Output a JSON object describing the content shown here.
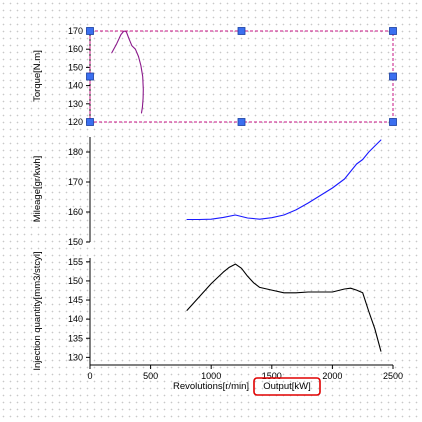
{
  "colors": {
    "background": "#ffffff",
    "axis": "#000000",
    "selection_box": "#c71585",
    "handle_fill": "#3b6ff0",
    "handle_stroke": "#1a3fa0",
    "highlight_box": "#e00000"
  },
  "chart_data": [
    {
      "type": "line",
      "panel": "torque",
      "ylabel": "Torque[N.m]",
      "ylim": [
        120,
        170
      ],
      "yticks": [
        120,
        130,
        140,
        150,
        160,
        170
      ],
      "selected": true,
      "series": [
        {
          "color": "#8b1a8b",
          "x": [
            180,
            220,
            255,
            280,
            300,
            320,
            345,
            375,
            400,
            420,
            435,
            440,
            438,
            432,
            425
          ],
          "y": [
            158,
            163,
            168,
            170,
            169.5,
            166,
            162,
            160,
            156,
            151,
            145,
            138,
            133,
            128,
            125
          ]
        }
      ]
    },
    {
      "type": "line",
      "panel": "mileage",
      "ylabel": "Mileage[gr/kwh]",
      "ylim": [
        150,
        185
      ],
      "yticks": [
        150,
        160,
        170,
        180
      ],
      "series": [
        {
          "color": "#1a1aff",
          "x": [
            800,
            900,
            1000,
            1100,
            1200,
            1300,
            1400,
            1500,
            1600,
            1700,
            1800,
            1900,
            2000,
            2100,
            2200,
            2250,
            2300,
            2350,
            2400
          ],
          "y": [
            157.5,
            157.5,
            157.6,
            158.2,
            159.0,
            158.0,
            157.6,
            158.1,
            159.0,
            160.7,
            163.0,
            165.5,
            168.0,
            171.0,
            176.0,
            177.5,
            180.0,
            182.0,
            184.0
          ]
        }
      ]
    },
    {
      "type": "line",
      "panel": "injection",
      "ylabel": "Injection quantity[mm3/stcyl]",
      "ylim": [
        128,
        156
      ],
      "yticks": [
        130,
        135,
        140,
        145,
        150,
        155
      ],
      "xlim": [
        0,
        2500
      ],
      "xticks": [
        0,
        500,
        1000,
        1500,
        2000,
        2500
      ],
      "series": [
        {
          "color": "#000000",
          "x": [
            800,
            900,
            1000,
            1100,
            1150,
            1200,
            1250,
            1300,
            1350,
            1400,
            1500,
            1600,
            1700,
            1800,
            1900,
            2000,
            2100,
            2150,
            2200,
            2250,
            2300,
            2350,
            2400
          ],
          "y": [
            142.3,
            145.8,
            149.3,
            152.3,
            153.6,
            154.4,
            153.3,
            151.2,
            149.5,
            148.3,
            147.6,
            146.9,
            146.9,
            147.1,
            147.1,
            147.1,
            147.9,
            148.1,
            147.6,
            146.9,
            142.0,
            137.5,
            131.6
          ]
        }
      ]
    }
  ],
  "x_axis": {
    "title_part1": "Revolutions[r/min]",
    "title_part2": "Output[kW]"
  }
}
